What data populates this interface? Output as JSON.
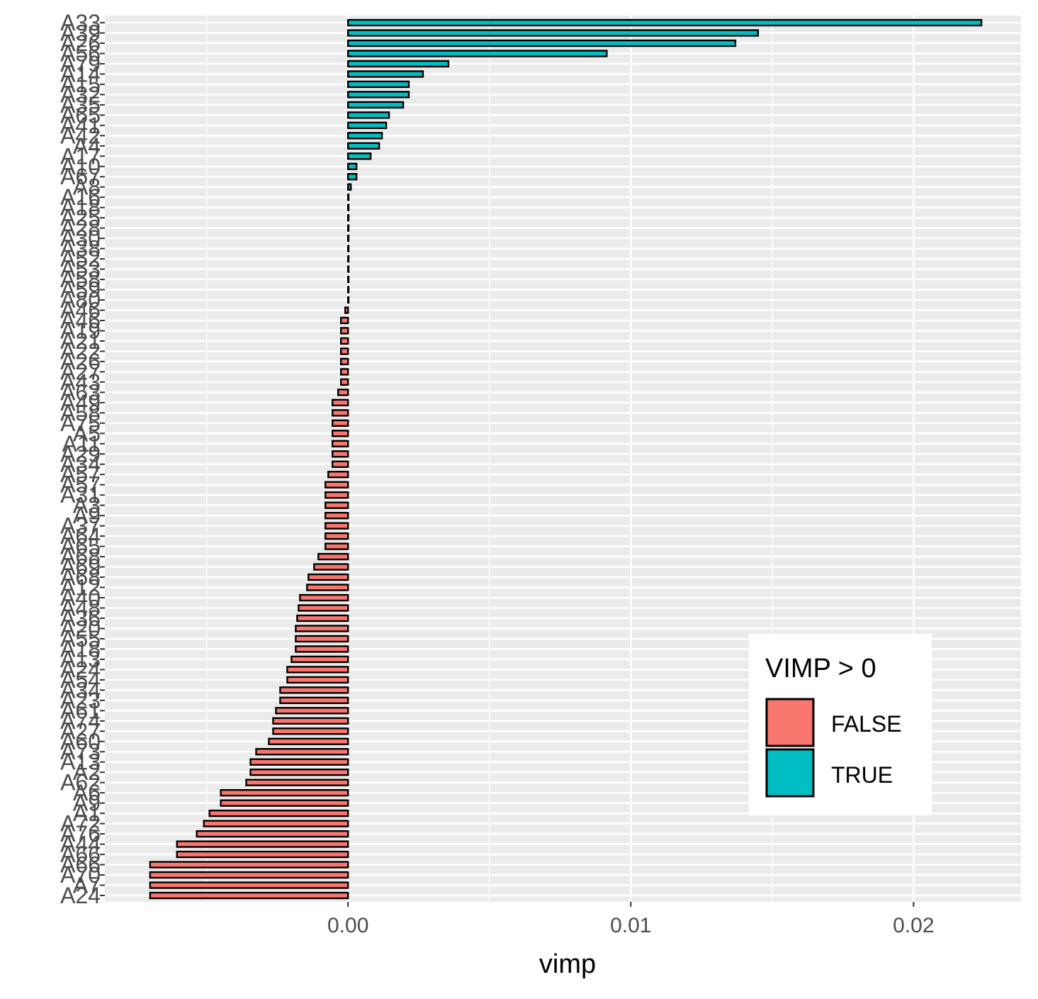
{
  "chart_data": {
    "type": "bar",
    "orientation": "horizontal",
    "xlabel": "vimp",
    "ylabel": "",
    "xlim": [
      -0.0086,
      0.0238
    ],
    "xticks": [
      0.0,
      0.01,
      0.02
    ],
    "xtick_labels": [
      "0.00",
      "0.01",
      "0.02"
    ],
    "grid": true,
    "legend": {
      "title": "VIMP > 0",
      "placement": "bottom-right",
      "entries": [
        {
          "label": "FALSE",
          "color": "#F8766D"
        },
        {
          "label": "TRUE",
          "color": "#00BFC4"
        }
      ]
    },
    "colors": {
      "false": "#F8766D",
      "true": "#00BFC4",
      "panel": "#EBEBEB",
      "grid": "#FFFFFF"
    },
    "categories": [
      "A33",
      "A39",
      "A26",
      "A56",
      "A79",
      "A14",
      "A15",
      "A32",
      "A35",
      "A65",
      "A41",
      "A42",
      "A4",
      "A17",
      "A10",
      "A67",
      "A8",
      "A16",
      "A18",
      "A25",
      "A28",
      "A30",
      "A38",
      "A52",
      "A53",
      "A58",
      "A59",
      "A80",
      "A46",
      "A46",
      "A19",
      "A21",
      "A22",
      "A26",
      "A27",
      "A43",
      "A63",
      "A49",
      "A58",
      "A75",
      "A5",
      "A11",
      "A29",
      "A34",
      "A57",
      "A57",
      "A31",
      "A3",
      "A9",
      "A37",
      "A64",
      "A65",
      "A68",
      "A69",
      "A68",
      "A12",
      "A40",
      "A48",
      "A36",
      "A20",
      "A55",
      "A18",
      "A13",
      "A24",
      "A54",
      "A34",
      "A23",
      "A61",
      "A74",
      "A27",
      "A60",
      "A73",
      "A13",
      "A2",
      "A62",
      "A6",
      "A9",
      "A1",
      "A72",
      "A76",
      "A44",
      "A66",
      "A66",
      "A70",
      "A7",
      "A24"
    ],
    "values": [
      0.0224,
      0.0145,
      0.0137,
      0.00915,
      0.00355,
      0.00265,
      0.00215,
      0.00215,
      0.00195,
      0.00145,
      0.00135,
      0.0012,
      0.0011,
      0.0008,
      0.0003,
      0.0003,
      0.0001,
      2e-05,
      2e-05,
      2e-05,
      2e-05,
      2e-05,
      2e-05,
      2e-05,
      2e-05,
      2e-05,
      2e-05,
      2e-05,
      -0.0001,
      -0.00025,
      -0.00025,
      -0.00025,
      -0.00025,
      -0.00025,
      -0.00025,
      -0.00025,
      -0.00035,
      -0.00055,
      -0.00055,
      -0.00055,
      -0.00055,
      -0.00055,
      -0.00055,
      -0.00055,
      -0.0007,
      -0.0008,
      -0.0008,
      -0.0008,
      -0.0008,
      -0.0008,
      -0.0008,
      -0.0008,
      -0.00105,
      -0.0012,
      -0.0014,
      -0.00145,
      -0.0017,
      -0.00175,
      -0.0018,
      -0.00185,
      -0.00185,
      -0.00185,
      -0.002,
      -0.00215,
      -0.00215,
      -0.0024,
      -0.0024,
      -0.00255,
      -0.00265,
      -0.00265,
      -0.0028,
      -0.00325,
      -0.00345,
      -0.00345,
      -0.0036,
      -0.0045,
      -0.0045,
      -0.0049,
      -0.0051,
      -0.00535,
      -0.00605,
      -0.00605,
      -0.007,
      -0.007,
      -0.007,
      -0.007
    ]
  }
}
